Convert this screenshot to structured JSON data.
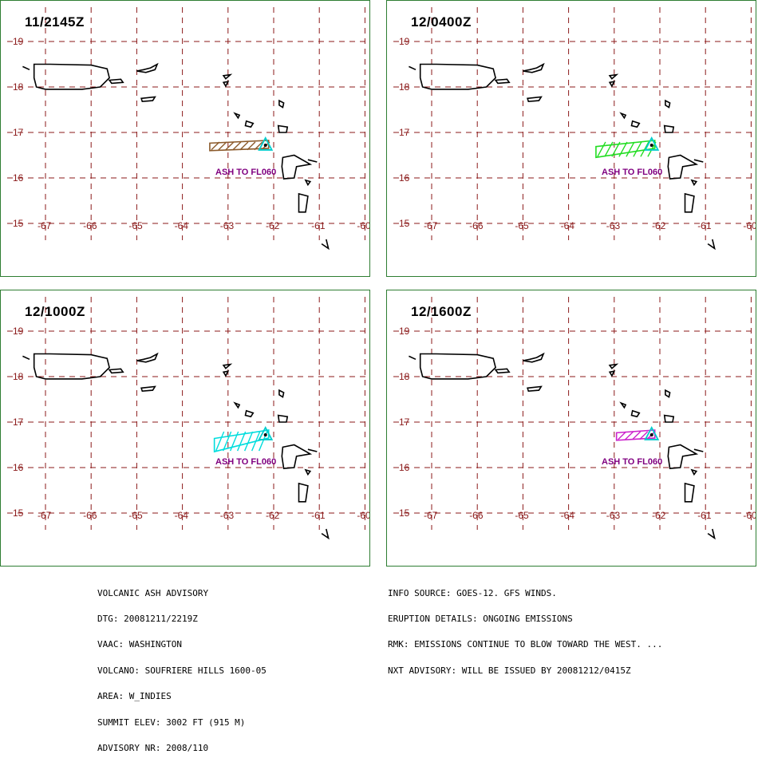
{
  "panels": [
    {
      "time": "11/2145Z",
      "ash_color": "#8b5a2b",
      "ash_label": "ASH TO FL060",
      "ash_west_lon": -63.4,
      "ash_south_lat": 16.6
    },
    {
      "time": "12/0400Z",
      "ash_color": "#22dd22",
      "ash_label": "ASH TO FL060",
      "ash_west_lon": -63.4,
      "ash_south_lat": 16.45
    },
    {
      "time": "12/1000Z",
      "ash_color": "#00dddd",
      "ash_label": "ASH TO FL060",
      "ash_west_lon": -63.3,
      "ash_south_lat": 16.35
    },
    {
      "time": "12/1600Z",
      "ash_color": "#cc22cc",
      "ash_label": "ASH TO FL060",
      "ash_west_lon": -62.95,
      "ash_south_lat": 16.6
    }
  ],
  "map": {
    "lon_ticks": [
      "-67",
      "-66",
      "-65",
      "-64",
      "-63",
      "-62",
      "-61",
      "-60"
    ],
    "lat_ticks": [
      "19",
      "18",
      "17",
      "16",
      "15"
    ],
    "lon_range": [
      -67.5,
      -60
    ],
    "lat_range": [
      14.7,
      19.6
    ],
    "grid_color": "#8b1a1a",
    "label_color": "#8b1a1a",
    "volcano": {
      "lon": -62.18,
      "lat": 16.72,
      "color": "#00cccc"
    },
    "ash_label_color": "#800080"
  },
  "advisory_left": [
    "VOLCANIC ASH ADVISORY",
    "DTG: 20081211/2219Z",
    "VAAC: WASHINGTON",
    "VOLCANO: SOUFRIERE HILLS 1600-05",
    "AREA: W_INDIES",
    "SUMMIT ELEV: 3002 FT (915 M)",
    "ADVISORY NR: 2008/110"
  ],
  "advisory_right": [
    "INFO SOURCE: GOES-12. GFS WINDS.",
    "ERUPTION DETAILS: ONGOING EMISSIONS",
    "RMK: EMISSIONS CONTINUE TO BLOW TOWARD THE WEST. ...",
    "NXT ADVISORY: WILL BE ISSUED BY 20081212/0415Z"
  ]
}
